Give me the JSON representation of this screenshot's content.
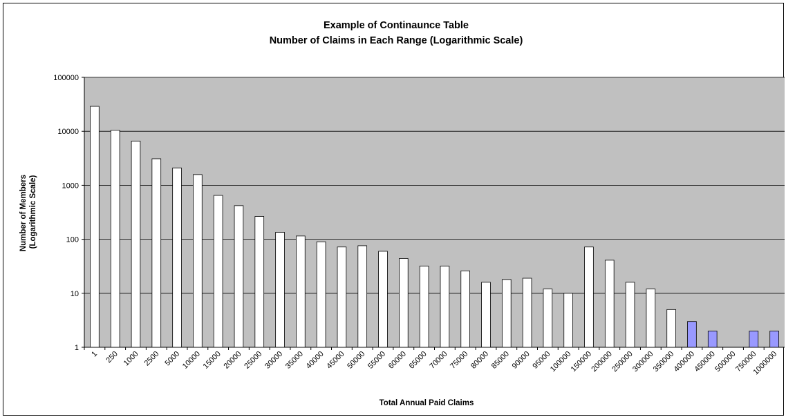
{
  "chart_data": {
    "type": "bar",
    "title": "Example of Continaunce Table",
    "subtitle": "Number of Claims in Each Range (Logarithmic Scale)",
    "xlabel": "Total Annual Paid Claims",
    "ylabel": "Number of Members",
    "ylabel_line2": "(Logarithmic Scale)",
    "y_scale": "log",
    "ylim": [
      1,
      100000
    ],
    "yticks": [
      "1",
      "10",
      "100",
      "1000",
      "10000",
      "100000"
    ],
    "grid": true,
    "plot_background": "#c0c0c0",
    "categories": [
      "1",
      "250",
      "1000",
      "2500",
      "5000",
      "10000",
      "15000",
      "20000",
      "25000",
      "30000",
      "35000",
      "40000",
      "45000",
      "50000",
      "55000",
      "60000",
      "65000",
      "70000",
      "75000",
      "80000",
      "85000",
      "90000",
      "95000",
      "100000",
      "150000",
      "200000",
      "250000",
      "300000",
      "350000",
      "400000",
      "450000",
      "500000",
      "750000",
      "1000000"
    ],
    "values": [
      29000,
      10500,
      6600,
      3100,
      2100,
      1580,
      650,
      420,
      265,
      135,
      115,
      90,
      72,
      76,
      60,
      44,
      32,
      32,
      26,
      16,
      18,
      19,
      12,
      10,
      72,
      41,
      16,
      12,
      5,
      3,
      2,
      1,
      2,
      2
    ],
    "colors": {
      "default_fill": "#ffffff",
      "highlight_fill": "#9999ff",
      "bar_stroke": "#000000"
    },
    "highlighted_from_category": "400000"
  }
}
